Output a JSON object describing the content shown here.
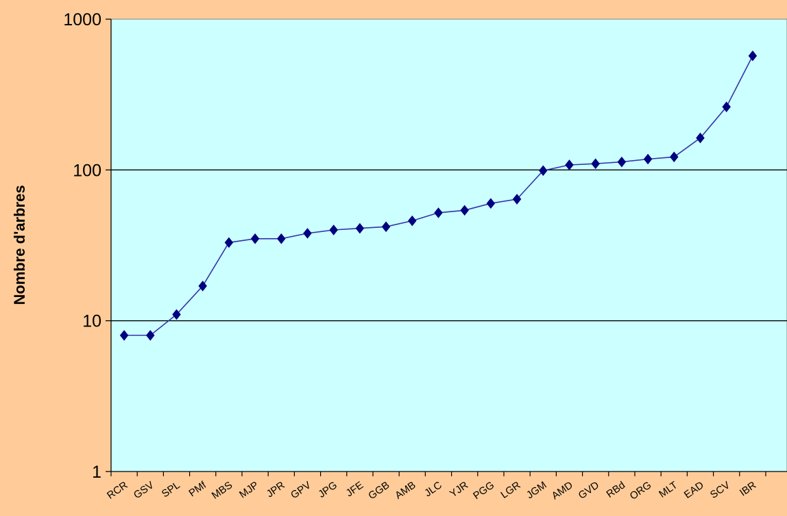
{
  "chart_data": {
    "type": "line",
    "title": "",
    "xlabel": "",
    "ylabel": "Nombre d'arbres",
    "yscale": "log",
    "ylim": [
      1,
      1000
    ],
    "y_ticks": [
      "1",
      "10",
      "100",
      "1000"
    ],
    "grid": "horizontal major lines at 10 and 100",
    "legend": "none",
    "categories": [
      "RCR",
      "GSV",
      "SPL",
      "PMf",
      "MBS",
      "MJP",
      "JPR",
      "GPV",
      "JPG",
      "JFE",
      "GGB",
      "AMB",
      "JLC",
      "YJR",
      "PGG",
      "LGR",
      "JGM",
      "AMD",
      "GVD",
      "RBd",
      "ORG",
      "MLT",
      "EAD",
      "SCV",
      "IBR"
    ],
    "series": [
      {
        "values": [
          8,
          8,
          11,
          17,
          33,
          35,
          35,
          38,
          40,
          41,
          42,
          46,
          52,
          54,
          60,
          64,
          99,
          108,
          110,
          113,
          118,
          122,
          163,
          262,
          571
        ]
      }
    ],
    "colors": {
      "background": "#FFCC99",
      "plot_area": "#CCFFFF",
      "line": "#3333AA",
      "marker": "#000080",
      "gridline": "#000000"
    }
  }
}
